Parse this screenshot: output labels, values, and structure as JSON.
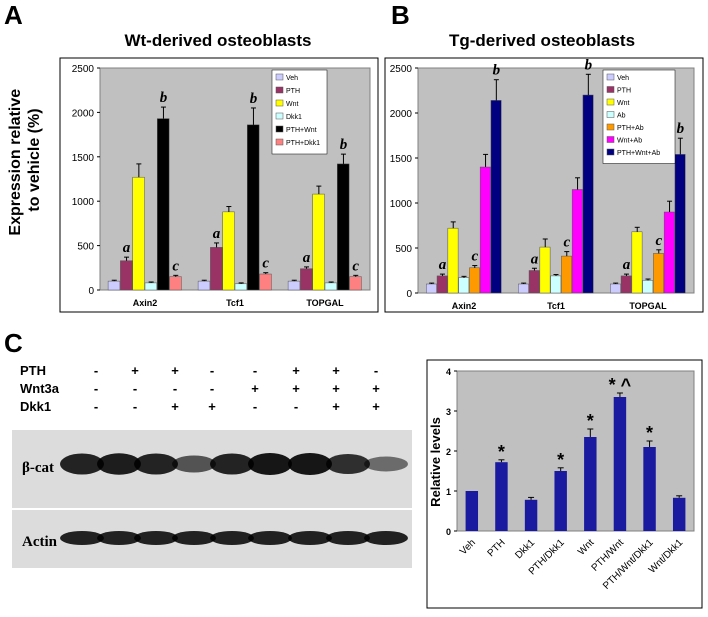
{
  "panels": {
    "a": "A",
    "b": "B",
    "c": "C"
  },
  "colors": {
    "Veh": "#ccccff",
    "PTH": "#993366",
    "Wnt": "#ffff00",
    "Dkk1": "#ccffff",
    "Ab": "#ccffff",
    "PTH+Wnt": "#000000",
    "PTH+Dkk1": "#ff8080",
    "PTH+Ab": "#ff9900",
    "Wnt+Ab": "#ff00ff",
    "PTH+Wnt+Ab": "#000080",
    "panelC": "#1a1aa0",
    "plotbg": "#c0c0c0"
  },
  "shared_ylabel": "Expression relative to vehicle (%)",
  "chart_data": [
    {
      "id": "A",
      "type": "bar",
      "title": "Wt-derived osteoblasts",
      "ylim": [
        0,
        2500
      ],
      "yticks": [
        0,
        500,
        1000,
        1500,
        2000,
        2500
      ],
      "categories": [
        "Axin2",
        "Tcf1",
        "TOPGAL"
      ],
      "series": [
        {
          "name": "Veh",
          "values": [
            100,
            100,
            100
          ],
          "errors": [
            10,
            10,
            10
          ],
          "labels": [
            "",
            "",
            ""
          ]
        },
        {
          "name": "PTH",
          "values": [
            330,
            480,
            240
          ],
          "errors": [
            40,
            50,
            20
          ],
          "labels": [
            "a",
            "a",
            "a"
          ]
        },
        {
          "name": "Wnt",
          "values": [
            1270,
            880,
            1080
          ],
          "errors": [
            150,
            60,
            90
          ],
          "labels": [
            "",
            "",
            ""
          ]
        },
        {
          "name": "Dkk1",
          "values": [
            80,
            70,
            80
          ],
          "errors": [
            10,
            10,
            10
          ],
          "labels": [
            "",
            "",
            ""
          ]
        },
        {
          "name": "PTH+Wnt",
          "values": [
            1930,
            1860,
            1420
          ],
          "errors": [
            130,
            190,
            110
          ],
          "labels": [
            "b",
            "b",
            "b"
          ]
        },
        {
          "name": "PTH+Dkk1",
          "values": [
            150,
            180,
            150
          ],
          "errors": [
            15,
            15,
            15
          ],
          "labels": [
            "c",
            "c",
            "c"
          ]
        }
      ]
    },
    {
      "id": "B",
      "type": "bar",
      "title": "Tg-derived osteoblasts",
      "ylim": [
        0,
        2500
      ],
      "yticks": [
        0,
        500,
        1000,
        1500,
        2000,
        2500
      ],
      "categories": [
        "Axin2",
        "Tcf1",
        "TOPGAL"
      ],
      "series": [
        {
          "name": "Veh",
          "values": [
            100,
            100,
            100
          ],
          "errors": [
            10,
            10,
            10
          ],
          "labels": [
            "",
            "",
            ""
          ]
        },
        {
          "name": "PTH",
          "values": [
            190,
            250,
            190
          ],
          "errors": [
            20,
            25,
            20
          ],
          "labels": [
            "a",
            "a",
            "a"
          ]
        },
        {
          "name": "Wnt",
          "values": [
            720,
            510,
            680
          ],
          "errors": [
            70,
            90,
            50
          ],
          "labels": [
            "",
            "",
            ""
          ]
        },
        {
          "name": "Ab",
          "values": [
            170,
            190,
            140
          ],
          "errors": [
            15,
            15,
            15
          ],
          "labels": [
            "",
            "",
            ""
          ]
        },
        {
          "name": "PTH+Ab",
          "values": [
            280,
            410,
            440
          ],
          "errors": [
            25,
            50,
            40
          ],
          "labels": [
            "c",
            "c",
            "c"
          ]
        },
        {
          "name": "Wnt+Ab",
          "values": [
            1400,
            1150,
            900
          ],
          "errors": [
            140,
            130,
            120
          ],
          "labels": [
            "",
            "",
            ""
          ]
        },
        {
          "name": "PTH+Wnt+Ab",
          "values": [
            2140,
            2200,
            1540
          ],
          "errors": [
            230,
            230,
            180
          ],
          "labels": [
            "b",
            "b",
            "b"
          ]
        }
      ]
    },
    {
      "id": "C",
      "type": "bar",
      "title": "",
      "ylabel": "Relative levels",
      "ylim": [
        0,
        4
      ],
      "yticks": [
        0,
        1,
        2,
        3,
        4
      ],
      "categories": [
        "Veh",
        "PTH",
        "Dkk1",
        "PTH/Dkk1",
        "Wnt",
        "PTH/Wnt",
        "PTH/Wnt/Dkk1",
        "Wnt/Dkk1"
      ],
      "values": [
        1.0,
        1.72,
        0.78,
        1.5,
        2.35,
        3.35,
        2.1,
        0.83
      ],
      "errors": [
        0.0,
        0.06,
        0.06,
        0.08,
        0.2,
        0.1,
        0.15,
        0.05
      ],
      "labels": [
        "",
        "*",
        "",
        "*",
        "*",
        "*^",
        "*",
        ""
      ]
    }
  ],
  "blot": {
    "treatments": [
      {
        "name": "PTH",
        "signs": [
          "-",
          "+",
          "+",
          "-",
          "-",
          "+",
          "+",
          "-"
        ]
      },
      {
        "name": "Wnt3a",
        "signs": [
          "-",
          "-",
          "-",
          "-",
          "+",
          "+",
          "+",
          "+"
        ]
      },
      {
        "name": "Dkk1",
        "signs": [
          "-",
          "-",
          "+",
          "+",
          "-",
          "-",
          "+",
          "+"
        ]
      }
    ],
    "rows": [
      "β-cat",
      "Actin"
    ]
  }
}
